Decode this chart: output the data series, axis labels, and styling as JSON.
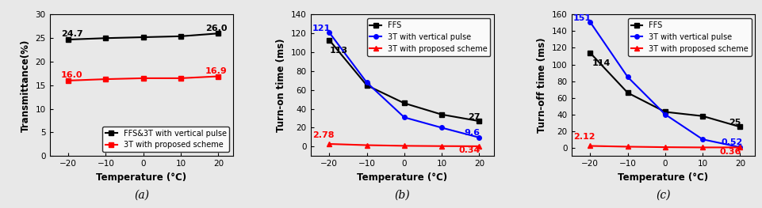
{
  "temp": [
    -20,
    -10,
    0,
    10,
    20
  ],
  "panel_a": {
    "ffs_3t_vp": [
      24.7,
      25.0,
      25.2,
      25.4,
      26.0
    ],
    "proposed": [
      16.0,
      16.3,
      16.5,
      16.5,
      16.9
    ],
    "ylabel": "Transmittance(%)",
    "xlabel": "Temperature (°C)",
    "ylim": [
      0,
      30
    ],
    "yticks": [
      0,
      5,
      10,
      15,
      20,
      25,
      30
    ],
    "label1": "FFS&3T with vertical pulse",
    "label2": "3T with proposed scheme",
    "ann1_val": "24.7",
    "ann2_val": "26.0",
    "ann3_val": "16.0",
    "ann4_val": "16.9",
    "sublabel": "(a)"
  },
  "panel_b": {
    "ffs": [
      113,
      65,
      46,
      34,
      27
    ],
    "vp_3t": [
      121,
      68,
      31,
      20,
      9.6
    ],
    "proposed": [
      2.78,
      1.5,
      0.8,
      0.5,
      0.34
    ],
    "ylabel": "Turn-on time (ms)",
    "xlabel": "Temperature (°C)",
    "ylim": [
      -10,
      140
    ],
    "yticks": [
      0,
      20,
      40,
      60,
      80,
      100,
      120,
      140
    ],
    "label1": "FFS",
    "label2": "3T with vertical pulse",
    "label3": "3T with proposed scheme",
    "ann1_val": "113",
    "ann2_val": "121",
    "ann3_val": "27",
    "ann4_val": "9.6",
    "ann5_val": "2.78",
    "ann6_val": "0.34",
    "sublabel": "(b)"
  },
  "panel_c": {
    "ffs": [
      114,
      66,
      43,
      38,
      25
    ],
    "vp_3t": [
      151,
      85,
      40,
      10,
      0.52
    ],
    "proposed": [
      2.12,
      1.2,
      0.6,
      0.3,
      0.36
    ],
    "ylabel": "Turn-off time (ms)",
    "xlabel": "Temperature (°C)",
    "ylim": [
      -10,
      160
    ],
    "yticks": [
      0,
      20,
      40,
      60,
      80,
      100,
      120,
      140,
      160
    ],
    "label1": "FFS",
    "label2": "3T with vertical pulse",
    "label3": "3T with proposed scheme",
    "ann1_val": "114",
    "ann2_val": "151",
    "ann3_val": "25",
    "ann4_val": "0.52",
    "ann5_val": "2.12",
    "ann6_val": "0.36",
    "sublabel": "(c)"
  },
  "color_black": "#000000",
  "color_blue": "#0000FF",
  "color_red": "#FF0000",
  "marker_sq": "s",
  "marker_ci": "o",
  "marker_tr": "^",
  "linewidth": 1.5,
  "markersize": 4,
  "fontsize_tick": 7.5,
  "fontsize_label": 8.5,
  "fontsize_legend": 7,
  "fontsize_ann": 8,
  "fontsize_sub": 10,
  "bg_color": "#e8e8e8"
}
